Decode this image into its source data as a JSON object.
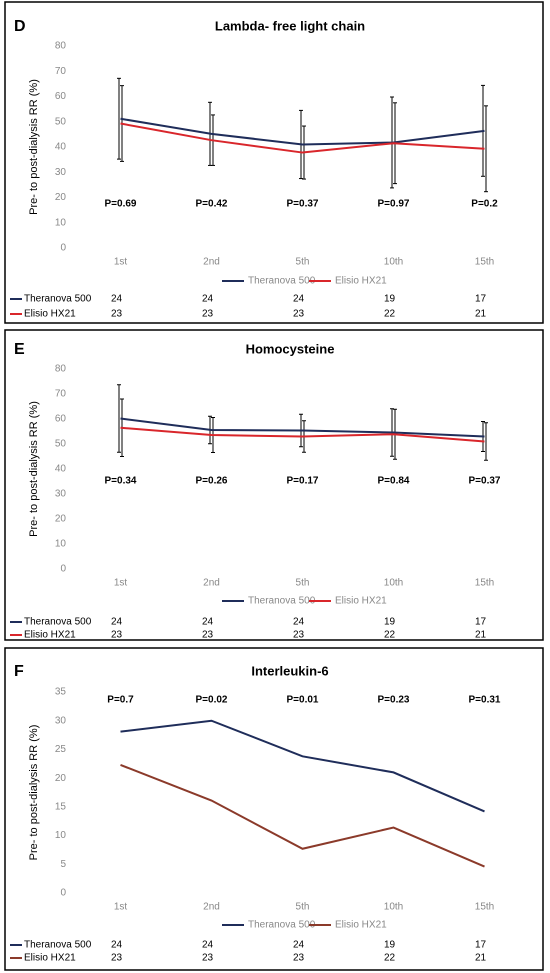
{
  "chart_data": [
    {
      "type": "line",
      "panel_label": "D",
      "title": "Lambda- free light chain",
      "y_label": "Pre- to post-dialysis RR (%)",
      "categories": [
        "1st",
        "2nd",
        "5th",
        "10th",
        "15th"
      ],
      "series": [
        {
          "name": "Theranova 500",
          "color": "#1f2d5a",
          "values": [
            51.2,
            45.2,
            41,
            41.8,
            46.4
          ],
          "errors": [
            16,
            12.5,
            13.5,
            18,
            18
          ],
          "counts": [
            24,
            24,
            24,
            19,
            17
          ]
        },
        {
          "name": "Elisio HX21",
          "color": "#d9262b",
          "values": [
            49.3,
            42.7,
            37.8,
            41.5,
            39.3
          ],
          "errors": [
            15,
            10,
            10.5,
            16,
            17
          ],
          "counts": [
            23,
            23,
            23,
            22,
            21
          ]
        }
      ],
      "p_values": [
        "P=0.69",
        "P=0.42",
        "P=0.37",
        "P=0.97",
        "P=0.2"
      ],
      "ylim": [
        0,
        80
      ],
      "yticks": [
        0,
        10,
        20,
        30,
        40,
        50,
        60,
        70,
        80
      ]
    },
    {
      "type": "line",
      "panel_label": "E",
      "title": "Homocysteine",
      "y_label": "Pre- to post-dialysis RR (%)",
      "categories": [
        "1st",
        "2nd",
        "5th",
        "10th",
        "15th"
      ],
      "series": [
        {
          "name": "Theranova 500",
          "color": "#1f2d5a",
          "values": [
            60.2,
            55.6,
            55.4,
            54.6,
            53
          ],
          "errors": [
            13.5,
            5.5,
            6.5,
            9.5,
            6
          ],
          "counts": [
            24,
            24,
            24,
            19,
            17
          ]
        },
        {
          "name": "Elisio HX21",
          "color": "#d9262b",
          "values": [
            56.5,
            53.6,
            53,
            53.9,
            51
          ],
          "errors": [
            11.5,
            7,
            6.3,
            10,
            7.5
          ],
          "counts": [
            23,
            23,
            23,
            22,
            21
          ]
        }
      ],
      "p_values": [
        "P=0.34",
        "P=0.26",
        "P=0.17",
        "P=0.84",
        "P=0.37"
      ],
      "ylim": [
        0,
        80
      ],
      "yticks": [
        0,
        10,
        20,
        30,
        40,
        50,
        60,
        70,
        80
      ]
    },
    {
      "type": "line",
      "panel_label": "F",
      "title": "Interleukin-6",
      "y_label": "Pre- to post-dialysis RR (%)",
      "categories": [
        "1st",
        "2nd",
        "5th",
        "10th",
        "15th"
      ],
      "series": [
        {
          "name": "Theranova 500",
          "color": "#1f2d5a",
          "values": [
            28.1,
            30,
            23.8,
            21,
            14.2
          ],
          "counts": [
            24,
            24,
            24,
            19,
            17
          ]
        },
        {
          "name": "Elisio HX21",
          "color": "#8b3a2a",
          "values": [
            22.3,
            16.1,
            7.7,
            11.4,
            4.6
          ],
          "counts": [
            23,
            23,
            23,
            22,
            21
          ]
        }
      ],
      "p_values": [
        "P=0.7",
        "P=0.02",
        "P=0.01",
        "P=0.23",
        "P=0.31"
      ],
      "ylim": [
        0,
        35
      ],
      "yticks": [
        0,
        5,
        10,
        15,
        20,
        25,
        30,
        35
      ]
    }
  ]
}
